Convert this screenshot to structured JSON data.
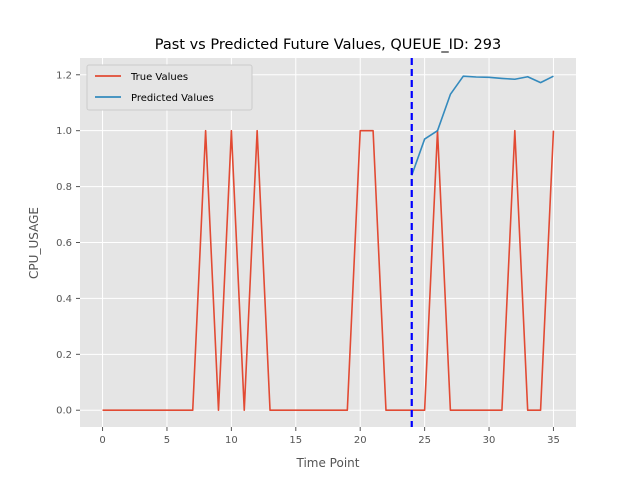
{
  "chart_data": {
    "type": "line",
    "title": "Past vs Predicted Future Values, QUEUE_ID: 293",
    "xlabel": "Time Point",
    "ylabel": "CPU_USAGE",
    "xlim": [
      -1.75,
      36.75
    ],
    "ylim": [
      -0.06,
      1.26
    ],
    "xticks": [
      0,
      5,
      10,
      15,
      20,
      25,
      30,
      35
    ],
    "xtick_labels": [
      "0",
      "5",
      "10",
      "15",
      "20",
      "25",
      "30",
      "35"
    ],
    "yticks": [
      0.0,
      0.2,
      0.4,
      0.6,
      0.8,
      1.0,
      1.2
    ],
    "ytick_labels": [
      "0.0",
      "0.2",
      "0.4",
      "0.6",
      "0.8",
      "1.0",
      "1.2"
    ],
    "grid": true,
    "legend_position": "top-left",
    "vline": {
      "x": 24,
      "color": "#0000ff",
      "style": "dashed"
    },
    "series": [
      {
        "name": "True Values",
        "color": "#e24a33",
        "x": [
          0,
          1,
          2,
          3,
          4,
          5,
          6,
          7,
          8,
          9,
          10,
          11,
          12,
          13,
          14,
          15,
          16,
          17,
          18,
          19,
          20,
          21,
          22,
          23,
          24,
          25,
          26,
          27,
          28,
          29,
          30,
          31,
          32,
          33,
          34,
          35
        ],
        "values": [
          0,
          0,
          0,
          0,
          0,
          0,
          0,
          0,
          1,
          0,
          1,
          0,
          1,
          0,
          0,
          0,
          0,
          0,
          0,
          0,
          1,
          1,
          0,
          0,
          0,
          0,
          1,
          0,
          0,
          0,
          0,
          0,
          1,
          0,
          0,
          1
        ]
      },
      {
        "name": "Predicted Values",
        "color": "#348abd",
        "x": [
          24,
          25,
          26,
          27,
          28,
          29,
          30,
          31,
          32,
          33,
          34,
          35
        ],
        "values": [
          0.84,
          0.97,
          1.0,
          1.13,
          1.195,
          1.192,
          1.191,
          1.187,
          1.184,
          1.193,
          1.172,
          1.195
        ]
      }
    ]
  }
}
